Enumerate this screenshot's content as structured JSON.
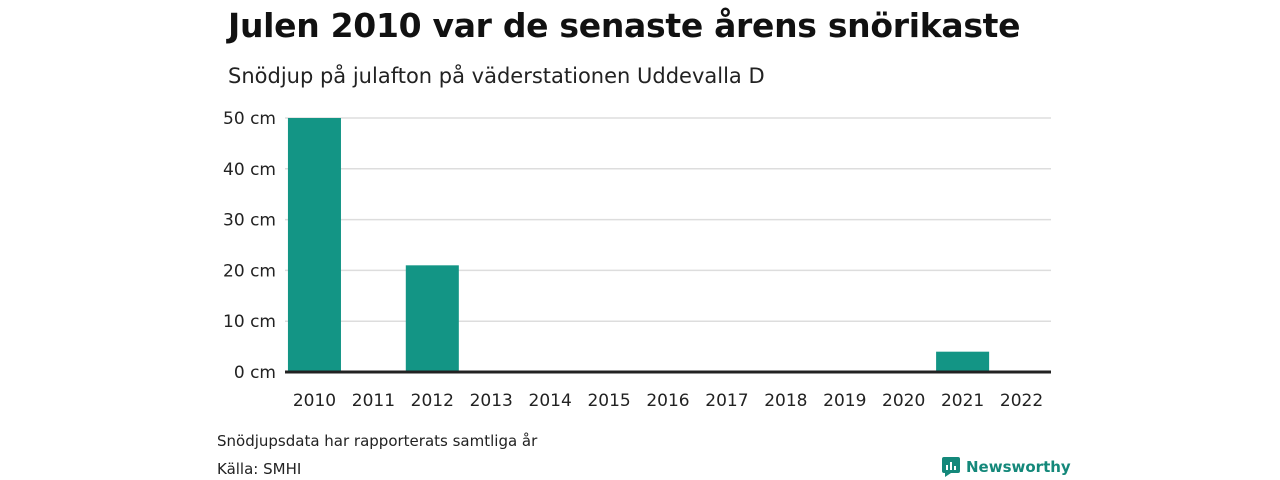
{
  "header": {
    "title": "Julen 2010 var de senaste årens snörikaste",
    "subtitle": "Snödjup på julafton på väderstationen Uddevalla D"
  },
  "footer": {
    "note": "Snödjupsdata har rapporterats samtliga år",
    "source": "Källa: SMHI",
    "brand": "Newsworthy",
    "brand_icon": "newsworthy-logo-icon"
  },
  "colors": {
    "bar": "#139585",
    "grid": "#dddddd",
    "axis": "#222222",
    "brand": "#14887a"
  },
  "chart_data": {
    "type": "bar",
    "categories": [
      "2010",
      "2011",
      "2012",
      "2013",
      "2014",
      "2015",
      "2016",
      "2017",
      "2018",
      "2019",
      "2020",
      "2021",
      "2022"
    ],
    "values": [
      50,
      0,
      21,
      0,
      0,
      0,
      0,
      0,
      0,
      0,
      0,
      4,
      0
    ],
    "y_ticks": [
      "0 cm",
      "10 cm",
      "20 cm",
      "30 cm",
      "40 cm",
      "50 cm"
    ],
    "y_tick_values": [
      0,
      10,
      20,
      30,
      40,
      50
    ],
    "ylim": [
      0,
      50
    ],
    "grid": true
  }
}
